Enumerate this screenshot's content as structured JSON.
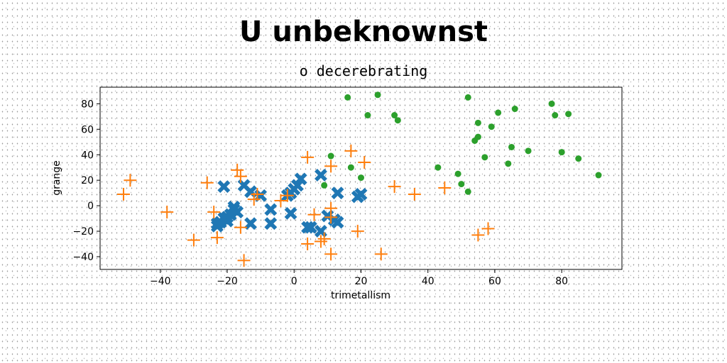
{
  "chart_data": {
    "type": "scatter",
    "title": "U unbeknownst",
    "subtitle": "o decerebrating",
    "xlabel": "trimetallism",
    "ylabel": "grange",
    "xlim": [
      -58,
      98
    ],
    "ylim": [
      -50,
      93
    ],
    "xticks": [
      -40,
      -20,
      0,
      20,
      40,
      60,
      80
    ],
    "yticks": [
      -40,
      -20,
      0,
      20,
      40,
      60,
      80
    ],
    "grid": false,
    "series": [
      {
        "marker": "X",
        "color": "#1f77b4",
        "points": [
          [
            -21,
            15
          ],
          [
            -15,
            16
          ],
          [
            -13,
            11
          ],
          [
            -10,
            8
          ],
          [
            -18,
            -3
          ],
          [
            -17,
            -5
          ],
          [
            -18,
            -1
          ],
          [
            -19,
            -7
          ],
          [
            -20,
            -9
          ],
          [
            -20,
            -12
          ],
          [
            -21,
            -10
          ],
          [
            -23,
            -14
          ],
          [
            -23,
            -16
          ],
          [
            -22,
            -13
          ],
          [
            -13,
            -14
          ],
          [
            -7,
            -3
          ],
          [
            -7,
            -14
          ],
          [
            -2,
            8
          ],
          [
            -1,
            10
          ],
          [
            0,
            13
          ],
          [
            1,
            16
          ],
          [
            2,
            21
          ],
          [
            -1,
            -6
          ],
          [
            4,
            -17
          ],
          [
            5,
            -17
          ],
          [
            8,
            -20
          ],
          [
            8,
            24
          ],
          [
            10,
            -8
          ],
          [
            12,
            -11
          ],
          [
            13,
            -13
          ],
          [
            13,
            10
          ],
          [
            19,
            7
          ],
          [
            20,
            9
          ]
        ]
      },
      {
        "marker": "+",
        "color": "#ff7f0e",
        "points": [
          [
            -51,
            9
          ],
          [
            -49,
            20
          ],
          [
            -38,
            -5
          ],
          [
            -30,
            -27
          ],
          [
            -26,
            18
          ],
          [
            -24,
            -5
          ],
          [
            -23,
            -25
          ],
          [
            -17,
            28
          ],
          [
            -16,
            -17
          ],
          [
            -16,
            23
          ],
          [
            -15,
            -43
          ],
          [
            -12,
            5
          ],
          [
            -11,
            9
          ],
          [
            -4,
            4
          ],
          [
            -2,
            8
          ],
          [
            4,
            38
          ],
          [
            4,
            -30
          ],
          [
            6,
            -7
          ],
          [
            8,
            -28
          ],
          [
            9,
            -26
          ],
          [
            11,
            31
          ],
          [
            11,
            -2
          ],
          [
            11,
            -9
          ],
          [
            11,
            -38
          ],
          [
            17,
            43
          ],
          [
            19,
            -20
          ],
          [
            21,
            34
          ],
          [
            26,
            -38
          ],
          [
            30,
            15
          ],
          [
            36,
            9
          ],
          [
            45,
            14
          ],
          [
            55,
            -23
          ],
          [
            58,
            -18
          ]
        ]
      },
      {
        "marker": "o",
        "color": "#2ca02c",
        "points": [
          [
            16,
            85
          ],
          [
            22,
            71
          ],
          [
            25,
            87
          ],
          [
            30,
            71
          ],
          [
            31,
            67
          ],
          [
            11,
            39
          ],
          [
            17,
            30
          ],
          [
            20,
            22
          ],
          [
            9,
            16
          ],
          [
            43,
            30
          ],
          [
            49,
            25
          ],
          [
            50,
            17
          ],
          [
            52,
            11
          ],
          [
            52,
            85
          ],
          [
            54,
            51
          ],
          [
            55,
            54
          ],
          [
            55,
            65
          ],
          [
            57,
            38
          ],
          [
            59,
            62
          ],
          [
            61,
            73
          ],
          [
            64,
            33
          ],
          [
            65,
            46
          ],
          [
            66,
            76
          ],
          [
            70,
            43
          ],
          [
            77,
            80
          ],
          [
            78,
            71
          ],
          [
            80,
            42
          ],
          [
            82,
            72
          ],
          [
            85,
            37
          ],
          [
            91,
            24
          ]
        ]
      }
    ]
  }
}
